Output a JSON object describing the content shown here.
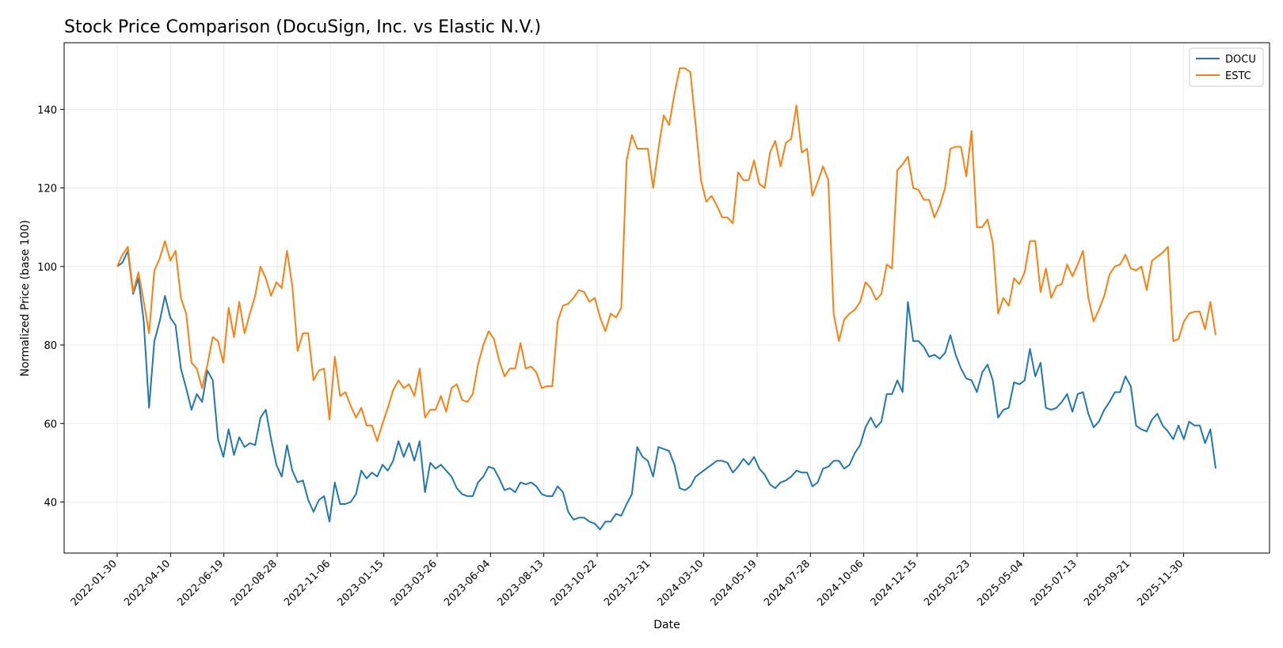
{
  "chart_data": {
    "type": "line",
    "title": "Stock Price Comparison (DocuSign, Inc. vs Elastic N.V.)",
    "xlabel": "Date",
    "ylabel": "Normalized Price (base 100)",
    "ylim": [
      27,
      157
    ],
    "yticks": [
      40,
      60,
      80,
      100,
      120,
      140
    ],
    "ytick_labels": [
      "40",
      "60",
      "80",
      "100",
      "120",
      "140"
    ],
    "xticks": [
      "2022-01-30",
      "2022-04-10",
      "2022-06-19",
      "2022-08-28",
      "2022-11-06",
      "2023-01-15",
      "2023-03-26",
      "2023-06-04",
      "2023-08-13",
      "2023-10-22",
      "2023-12-31",
      "2024-03-10",
      "2024-05-19",
      "2024-07-28",
      "2024-10-06",
      "2024-12-15",
      "2025-02-23",
      "2025-05-04",
      "2025-07-13",
      "2025-09-21",
      "2025-11-30"
    ],
    "grid": true,
    "legend_position": "top-right",
    "x_start": "2022-01-30",
    "x_end": "2026-01-11",
    "x_span_weeks": 206,
    "series": [
      {
        "name": "DOCU",
        "color": "#1f77b4",
        "values": [
          100,
          101,
          104,
          93,
          97,
          86,
          64,
          81,
          86,
          92.5,
          87,
          85,
          74,
          69,
          63.5,
          67.5,
          65.5,
          73.5,
          71,
          56,
          51.5,
          58.5,
          52,
          56.5,
          54,
          55,
          54.5,
          61.5,
          63.5,
          56,
          49.5,
          46.5,
          54.5,
          48,
          45,
          45.5,
          40.5,
          37.5,
          40.5,
          41.5,
          35,
          45,
          39.5,
          39.5,
          40,
          42,
          48,
          46,
          47.5,
          46.5,
          49.5,
          48,
          50.5,
          55.5,
          51.5,
          55,
          50.5,
          55.5,
          42.5,
          50,
          48.5,
          49.5,
          48,
          46.5,
          43.5,
          42,
          41.5,
          41.5,
          45,
          46.5,
          49,
          48.5,
          46,
          43,
          43.5,
          42.5,
          45,
          44.5,
          45,
          44,
          42,
          41.5,
          41.5,
          44,
          42.5,
          37.5,
          35.5,
          36,
          36,
          35,
          34.5,
          33,
          35,
          35,
          37,
          36.5,
          39.5,
          42,
          54,
          51.5,
          50.5,
          46.5,
          54,
          53.5,
          53,
          49.5,
          43.5,
          43,
          44,
          46.5,
          47.5,
          48.5,
          49.5,
          50.5,
          50.5,
          50,
          47.5,
          49,
          51,
          49.5,
          51.5,
          48.5,
          47,
          44.5,
          43.5,
          45,
          45.5,
          46.5,
          48,
          47.5,
          47.5,
          44,
          45,
          48.5,
          49,
          50.5,
          50.5,
          48.5,
          49.5,
          52.5,
          54.5,
          59,
          61.5,
          59,
          60.5,
          67.5,
          67.5,
          71,
          68,
          91,
          81,
          81,
          79.5,
          77,
          77.5,
          76.5,
          78,
          82.5,
          77.5,
          74,
          71.5,
          71,
          68,
          73,
          75,
          71,
          61.5,
          63.5,
          64,
          70.5,
          70,
          71,
          79,
          72,
          75.5,
          64,
          63.5,
          64,
          65.5,
          67.5,
          63,
          67.5,
          68,
          62.5,
          59,
          60.5,
          63.5,
          65.5,
          68,
          68,
          72,
          69.5,
          59.5,
          58.5,
          58,
          61,
          62.5,
          59.5,
          58,
          56,
          59.5,
          56,
          60.5,
          59.5,
          59.5,
          55,
          58.5,
          48.5
        ]
      },
      {
        "name": "ESTC",
        "color": "#ff7f0e",
        "values": [
          100,
          103,
          105,
          93.5,
          98.5,
          91,
          83,
          99,
          102,
          106.5,
          101.5,
          104,
          92,
          88,
          75.5,
          74,
          69,
          75,
          82,
          81,
          75.5,
          89.5,
          82,
          91,
          83,
          88,
          92.5,
          100,
          97,
          92.5,
          96,
          94.5,
          104,
          95,
          78.5,
          83,
          83,
          71,
          73.5,
          74,
          61,
          77,
          67,
          68,
          64.5,
          61.5,
          64,
          59.5,
          59.5,
          55.5,
          60,
          64,
          68.5,
          71,
          69,
          70,
          67,
          74,
          61.5,
          63.5,
          63.5,
          67,
          63,
          69,
          70,
          66,
          65.5,
          67.5,
          75,
          80,
          83.5,
          81.5,
          76,
          72,
          74,
          74,
          80.5,
          74,
          74.5,
          73,
          69,
          69.5,
          69.5,
          86,
          90,
          90.5,
          92,
          94,
          93.5,
          91,
          92,
          87,
          83.5,
          88,
          87,
          89.5,
          127,
          133.5,
          130,
          130,
          130,
          120,
          130,
          138.5,
          136,
          144,
          150.5,
          150.5,
          149.5,
          136,
          122,
          116.5,
          118,
          115.5,
          112.5,
          112.5,
          111,
          124,
          122,
          122,
          127,
          121,
          120,
          129,
          132,
          125.5,
          131.5,
          132.5,
          141,
          129,
          130,
          118,
          121.5,
          125.5,
          122,
          88,
          81,
          86.5,
          88,
          89,
          91,
          96,
          94.5,
          91.5,
          93,
          100.5,
          99.5,
          124.5,
          126,
          128,
          120,
          119.5,
          117,
          117,
          112.5,
          115.5,
          120,
          130,
          130.5,
          130.5,
          123,
          134.5,
          110,
          110,
          112,
          106,
          88,
          92,
          90,
          97,
          95.5,
          98.5,
          106.5,
          106.5,
          93.5,
          99.5,
          92,
          95,
          95.5,
          100.5,
          97.5,
          100.5,
          104,
          92,
          86,
          89,
          92.5,
          98,
          100,
          100.5,
          103,
          99.5,
          99,
          100,
          94,
          101.5,
          102.5,
          103.5,
          105,
          81,
          81.5,
          86,
          88,
          88.5,
          88.5,
          84,
          91,
          82.5
        ]
      }
    ]
  }
}
